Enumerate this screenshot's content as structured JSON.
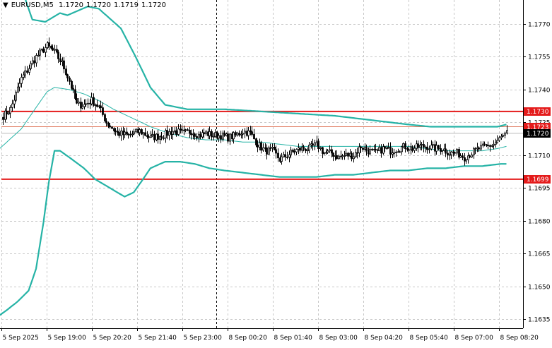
{
  "header": {
    "arrow": "▼",
    "symbol": "EURUSD,M5",
    "open": "1.1720",
    "high": "1.1720",
    "low": "1.1719",
    "close": "1.1720"
  },
  "colors": {
    "background": "#ffffff",
    "grid": "#c8c8c8",
    "candle": "#000000",
    "bollinger": "#26b3a6",
    "level": "#e41b1b",
    "price_marker": "#000000"
  },
  "chart_data": {
    "type": "candlestick",
    "title": "EURUSD,M5",
    "xlabel": "",
    "ylabel": "",
    "ylim": [
      1.1628,
      1.1785
    ],
    "y_ticks": [
      "1.1770",
      "1.1755",
      "1.1740",
      "1.1725",
      "1.1710",
      "1.1695",
      "1.1680",
      "1.1665",
      "1.1650",
      "1.1635"
    ],
    "x_ticks": [
      "5 Sep 2025",
      "5 Sep 19:00",
      "5 Sep 20:20",
      "5 Sep 21:40",
      "5 Sep 23:00",
      "8 Sep 00:20",
      "8 Sep 01:40",
      "8 Sep 03:00",
      "8 Sep 04:20",
      "8 Sep 05:40",
      "8 Sep 07:00",
      "8 Sep 08:20"
    ],
    "grid": true,
    "session_separator": "8 Sep 00:00",
    "horizontal_levels": [
      {
        "label": "1.1730",
        "value": 1.173,
        "color": "#e41b1b"
      },
      {
        "label": "1.1699",
        "value": 1.1699,
        "color": "#e41b1b"
      }
    ],
    "price_markers": [
      {
        "label": "1.1723",
        "value": 1.1723,
        "color": "#e41b1b",
        "line_color": "#e07a5f"
      },
      {
        "label": "1.1720",
        "value": 1.172,
        "color": "#000000",
        "line_color": "#bbbbbb"
      }
    ],
    "close_anchors": [
      [
        0,
        1.1728
      ],
      [
        4,
        1.1731
      ],
      [
        10,
        1.1745
      ],
      [
        14,
        1.175
      ],
      [
        18,
        1.1755
      ],
      [
        24,
        1.176
      ],
      [
        28,
        1.1757
      ],
      [
        32,
        1.1752
      ],
      [
        36,
        1.1744
      ],
      [
        40,
        1.1733
      ],
      [
        44,
        1.1733
      ],
      [
        48,
        1.1735
      ],
      [
        52,
        1.1732
      ],
      [
        56,
        1.1725
      ],
      [
        62,
        1.172
      ],
      [
        68,
        1.1719
      ],
      [
        74,
        1.1721
      ],
      [
        80,
        1.1718
      ],
      [
        86,
        1.1719
      ],
      [
        92,
        1.1721
      ],
      [
        98,
        1.172
      ],
      [
        102,
        1.1721
      ],
      [
        106,
        1.1719
      ],
      [
        110,
        1.172
      ],
      [
        114,
        1.1719
      ],
      [
        118,
        1.1719
      ],
      [
        122,
        1.1718
      ],
      [
        126,
        1.1719
      ],
      [
        130,
        1.1721
      ],
      [
        134,
        1.172
      ],
      [
        138,
        1.1715
      ],
      [
        142,
        1.1712
      ],
      [
        146,
        1.1712
      ],
      [
        150,
        1.1708
      ],
      [
        154,
        1.171
      ],
      [
        158,
        1.1712
      ],
      [
        162,
        1.1713
      ],
      [
        166,
        1.1713
      ],
      [
        170,
        1.1715
      ],
      [
        174,
        1.1711
      ],
      [
        178,
        1.1711
      ],
      [
        182,
        1.1709
      ],
      [
        186,
        1.171
      ],
      [
        190,
        1.171
      ],
      [
        194,
        1.1714
      ],
      [
        198,
        1.1712
      ],
      [
        202,
        1.1711
      ],
      [
        206,
        1.1713
      ],
      [
        210,
        1.1712
      ],
      [
        214,
        1.1713
      ],
      [
        218,
        1.1714
      ],
      [
        222,
        1.1713
      ],
      [
        226,
        1.1714
      ],
      [
        230,
        1.1714
      ],
      [
        234,
        1.1713
      ],
      [
        238,
        1.1713
      ],
      [
        242,
        1.1711
      ],
      [
        246,
        1.1711
      ],
      [
        250,
        1.1709
      ],
      [
        254,
        1.1711
      ],
      [
        258,
        1.1713
      ],
      [
        262,
        1.1714
      ],
      [
        266,
        1.1715
      ],
      [
        270,
        1.1718
      ],
      [
        273,
        1.172
      ]
    ],
    "bands": [
      {
        "name": "upper",
        "width": 2.2,
        "points": [
          [
            -3,
            1.1819
          ],
          [
            16,
            1.1772
          ],
          [
            23,
            1.1771
          ],
          [
            31,
            1.1775
          ],
          [
            35,
            1.1774
          ],
          [
            46,
            1.1778
          ],
          [
            52,
            1.1777
          ],
          [
            56,
            1.1774
          ],
          [
            64,
            1.1768
          ],
          [
            72,
            1.1755
          ],
          [
            80,
            1.1741
          ],
          [
            88,
            1.1733
          ],
          [
            100,
            1.1731
          ],
          [
            120,
            1.1731
          ],
          [
            140,
            1.173
          ],
          [
            160,
            1.1729
          ],
          [
            180,
            1.1728
          ],
          [
            200,
            1.1726
          ],
          [
            220,
            1.1724
          ],
          [
            232,
            1.1723
          ],
          [
            250,
            1.1723
          ],
          [
            268,
            1.1723
          ],
          [
            273,
            1.1724
          ]
        ]
      },
      {
        "name": "middle",
        "width": 1.0,
        "points": [
          [
            -3,
            1.1712
          ],
          [
            10,
            1.1722
          ],
          [
            19,
            1.1733
          ],
          [
            24,
            1.1739
          ],
          [
            28,
            1.1741
          ],
          [
            36,
            1.174
          ],
          [
            44,
            1.1738
          ],
          [
            52,
            1.1735
          ],
          [
            60,
            1.1731
          ],
          [
            70,
            1.1727
          ],
          [
            80,
            1.1723
          ],
          [
            90,
            1.172
          ],
          [
            100,
            1.1718
          ],
          [
            110,
            1.1717
          ],
          [
            120,
            1.1717
          ],
          [
            130,
            1.1716
          ],
          [
            140,
            1.1716
          ],
          [
            150,
            1.1715
          ],
          [
            160,
            1.1714
          ],
          [
            170,
            1.1714
          ],
          [
            180,
            1.1714
          ],
          [
            190,
            1.1714
          ],
          [
            200,
            1.1714
          ],
          [
            210,
            1.1714
          ],
          [
            220,
            1.1714
          ],
          [
            230,
            1.1713
          ],
          [
            240,
            1.1712
          ],
          [
            250,
            1.1712
          ],
          [
            260,
            1.1712
          ],
          [
            268,
            1.1713
          ],
          [
            273,
            1.1714
          ]
        ]
      },
      {
        "name": "lower",
        "width": 2.2,
        "points": [
          [
            -3,
            1.1636
          ],
          [
            2,
            1.1639
          ],
          [
            8,
            1.1643
          ],
          [
            14,
            1.1648
          ],
          [
            18,
            1.1658
          ],
          [
            22,
            1.1679
          ],
          [
            25,
            1.1698
          ],
          [
            28,
            1.1712
          ],
          [
            31,
            1.1712
          ],
          [
            36,
            1.1709
          ],
          [
            44,
            1.1704
          ],
          [
            50,
            1.1699
          ],
          [
            56,
            1.1696
          ],
          [
            62,
            1.1693
          ],
          [
            66,
            1.1691
          ],
          [
            71,
            1.1693
          ],
          [
            76,
            1.1699
          ],
          [
            80,
            1.1704
          ],
          [
            88,
            1.1707
          ],
          [
            96,
            1.1707
          ],
          [
            104,
            1.1706
          ],
          [
            112,
            1.1704
          ],
          [
            120,
            1.1703
          ],
          [
            130,
            1.1702
          ],
          [
            140,
            1.1701
          ],
          [
            150,
            1.17
          ],
          [
            160,
            1.17
          ],
          [
            170,
            1.17
          ],
          [
            180,
            1.1701
          ],
          [
            190,
            1.1701
          ],
          [
            200,
            1.1702
          ],
          [
            210,
            1.1703
          ],
          [
            220,
            1.1703
          ],
          [
            230,
            1.1704
          ],
          [
            240,
            1.1704
          ],
          [
            250,
            1.1705
          ],
          [
            260,
            1.1705
          ],
          [
            270,
            1.1706
          ],
          [
            273,
            1.1706
          ]
        ]
      }
    ]
  }
}
